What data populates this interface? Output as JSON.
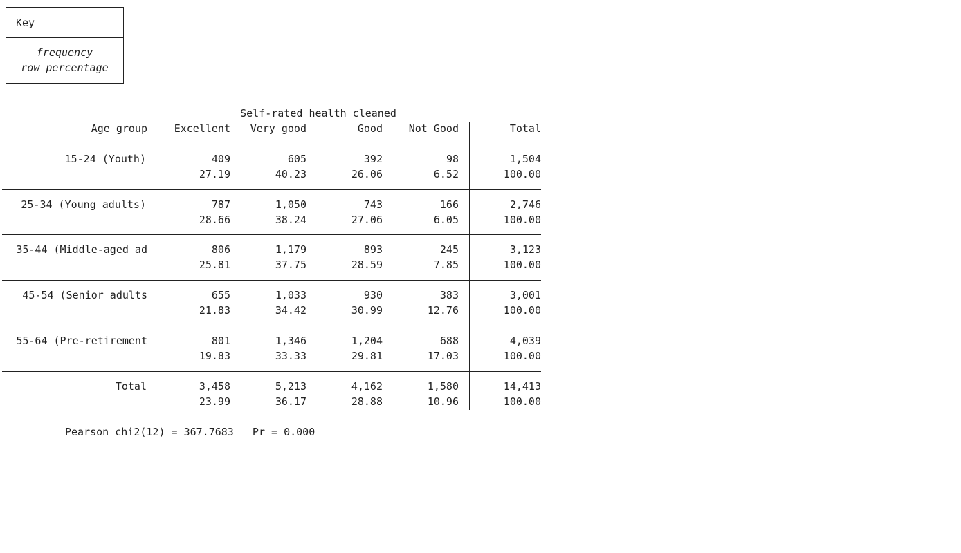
{
  "key": {
    "title": "Key",
    "line1": "frequency",
    "line2": "row percentage"
  },
  "table": {
    "super_header": "Self-rated health cleaned",
    "row_var_label": "Age group",
    "columns": [
      "Excellent",
      "Very good",
      "Good",
      "Not Good",
      "Total"
    ],
    "rows": [
      {
        "label": "15-24 (Youth)",
        "freq": [
          "409",
          "605",
          "392",
          "98",
          "1,504"
        ],
        "pct": [
          "27.19",
          "40.23",
          "26.06",
          "6.52",
          "100.00"
        ]
      },
      {
        "label": "25-34 (Young adults)",
        "freq": [
          "787",
          "1,050",
          "743",
          "166",
          "2,746"
        ],
        "pct": [
          "28.66",
          "38.24",
          "27.06",
          "6.05",
          "100.00"
        ]
      },
      {
        "label": "35-44 (Middle-aged ad",
        "freq": [
          "806",
          "1,179",
          "893",
          "245",
          "3,123"
        ],
        "pct": [
          "25.81",
          "37.75",
          "28.59",
          "7.85",
          "100.00"
        ]
      },
      {
        "label": "45-54 (Senior adults",
        "freq": [
          "655",
          "1,033",
          "930",
          "383",
          "3,001"
        ],
        "pct": [
          "21.83",
          "34.42",
          "30.99",
          "12.76",
          "100.00"
        ]
      },
      {
        "label": "55-64 (Pre-retirement",
        "freq": [
          "801",
          "1,346",
          "1,204",
          "688",
          "4,039"
        ],
        "pct": [
          "19.83",
          "33.33",
          "29.81",
          "17.03",
          "100.00"
        ]
      },
      {
        "label": "Total",
        "freq": [
          "3,458",
          "5,213",
          "4,162",
          "1,580",
          "14,413"
        ],
        "pct": [
          "23.99",
          "36.17",
          "28.88",
          "10.96",
          "100.00"
        ]
      }
    ],
    "footer": "Pearson chi2(12) = 367.7683   Pr = 0.000"
  }
}
